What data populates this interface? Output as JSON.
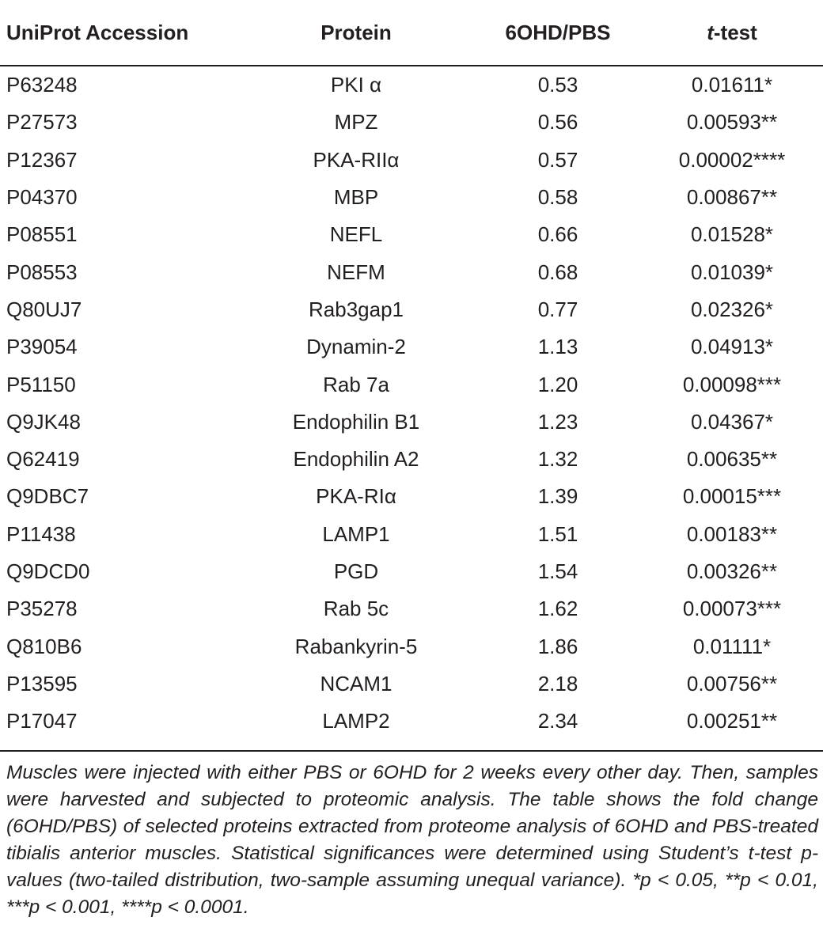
{
  "table": {
    "headers": {
      "accession": "UniProt Accession",
      "protein": "Protein",
      "ratio": "6OHD/PBS",
      "ttest_italic": "t",
      "ttest_rest": "-test"
    },
    "rows": [
      {
        "accession": "P63248",
        "protein": "PKI α",
        "ratio": "0.53",
        "pvalue": "0.01611*"
      },
      {
        "accession": "P27573",
        "protein": "MPZ",
        "ratio": "0.56",
        "pvalue": "0.00593**"
      },
      {
        "accession": "P12367",
        "protein": "PKA-RIIα",
        "ratio": "0.57",
        "pvalue": "0.00002****"
      },
      {
        "accession": "P04370",
        "protein": "MBP",
        "ratio": "0.58",
        "pvalue": "0.00867**"
      },
      {
        "accession": "P08551",
        "protein": "NEFL",
        "ratio": "0.66",
        "pvalue": "0.01528*"
      },
      {
        "accession": "P08553",
        "protein": "NEFM",
        "ratio": "0.68",
        "pvalue": "0.01039*"
      },
      {
        "accession": "Q80UJ7",
        "protein": "Rab3gap1",
        "ratio": "0.77",
        "pvalue": "0.02326*"
      },
      {
        "accession": "P39054",
        "protein": "Dynamin-2",
        "ratio": "1.13",
        "pvalue": "0.04913*"
      },
      {
        "accession": "P51150",
        "protein": "Rab 7a",
        "ratio": "1.20",
        "pvalue": "0.00098***"
      },
      {
        "accession": "Q9JK48",
        "protein": "Endophilin B1",
        "ratio": "1.23",
        "pvalue": "0.04367*"
      },
      {
        "accession": "Q62419",
        "protein": "Endophilin A2",
        "ratio": "1.32",
        "pvalue": "0.00635**"
      },
      {
        "accession": "Q9DBC7",
        "protein": "PKA-RIα",
        "ratio": "1.39",
        "pvalue": "0.00015***"
      },
      {
        "accession": "P11438",
        "protein": "LAMP1",
        "ratio": "1.51",
        "pvalue": "0.00183**"
      },
      {
        "accession": "Q9DCD0",
        "protein": "PGD",
        "ratio": "1.54",
        "pvalue": "0.00326**"
      },
      {
        "accession": "P35278",
        "protein": "Rab 5c",
        "ratio": "1.62",
        "pvalue": "0.00073***"
      },
      {
        "accession": "Q810B6",
        "protein": "Rabankyrin-5",
        "ratio": "1.86",
        "pvalue": "0.01111*"
      },
      {
        "accession": "P13595",
        "protein": "NCAM1",
        "ratio": "2.18",
        "pvalue": "0.00756**"
      },
      {
        "accession": "P17047",
        "protein": "LAMP2",
        "ratio": "2.34",
        "pvalue": "0.00251**"
      }
    ]
  },
  "footnote": "Muscles were injected with either PBS or 6OHD for 2 weeks every other day. Then, samples were harvested and subjected to proteomic analysis. The table shows the fold change (6OHD/PBS) of selected proteins extracted from proteome analysis of 6OHD and PBS-treated tibialis anterior muscles. Statistical significances were determined using Student’s t-test p-values (two-tailed distribution, two-sample assuming unequal variance). *p < 0.05, **p < 0.01, ***p < 0.001, ****p < 0.0001."
}
